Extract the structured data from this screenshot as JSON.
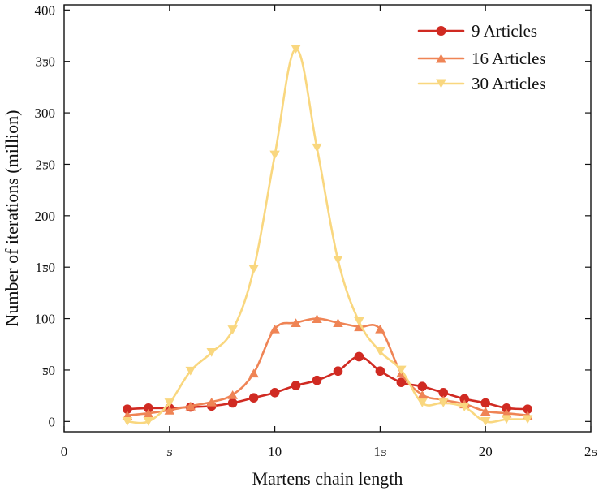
{
  "chart_data": {
    "type": "line",
    "title": "",
    "xlabel": "Martens chain length",
    "ylabel": "Number of iterations (million)",
    "xlim": [
      0,
      25
    ],
    "ylim": [
      -10,
      405
    ],
    "xticks": [
      0,
      5,
      10,
      15,
      20,
      25
    ],
    "yticks": [
      0,
      50,
      100,
      150,
      200,
      250,
      300,
      350,
      400
    ],
    "xtick_labels": [
      "0",
      "ƽ",
      "10",
      "1ƽ",
      "20",
      "2ƽ"
    ],
    "ytick_labels": [
      "0",
      "ƽ0",
      "100",
      "1ƽ0",
      "200",
      "2ƽ0",
      "300",
      "3ƽ0",
      "400"
    ],
    "grid": false,
    "legend_position": "top-right",
    "series": [
      {
        "name": "9 Articles",
        "color": "#d02a22",
        "marker": "circle",
        "x": [
          3,
          4,
          5,
          6,
          7,
          8,
          9,
          10,
          11,
          12,
          13,
          14,
          15,
          16,
          17,
          18,
          19,
          20,
          21,
          22
        ],
        "values": [
          12,
          13,
          13,
          14,
          15,
          18,
          23,
          28,
          35,
          40,
          49,
          63,
          49,
          38,
          34,
          28,
          22,
          18,
          13,
          12
        ]
      },
      {
        "name": "16 Articles",
        "color": "#ef8455",
        "marker": "triangle-up",
        "x": [
          3,
          4,
          5,
          6,
          7,
          8,
          9,
          10,
          11,
          12,
          13,
          14,
          15,
          16,
          17,
          18,
          19,
          20,
          21,
          22
        ],
        "values": [
          6,
          8,
          11,
          15,
          19,
          26,
          47,
          90,
          96,
          100,
          96,
          92,
          90,
          47,
          26,
          21,
          17,
          10,
          8,
          6
        ]
      },
      {
        "name": "30 Articles",
        "color": "#f9d77f",
        "marker": "triangle-down",
        "x": [
          3,
          4,
          5,
          6,
          7,
          8,
          9,
          10,
          11,
          12,
          13,
          14,
          15,
          16,
          17,
          18,
          19,
          20,
          21,
          22
        ],
        "values": [
          0,
          0,
          18,
          49,
          67,
          89,
          148,
          259,
          362,
          266,
          157,
          97,
          68,
          50,
          18,
          18,
          14,
          0,
          2,
          2
        ]
      }
    ]
  }
}
